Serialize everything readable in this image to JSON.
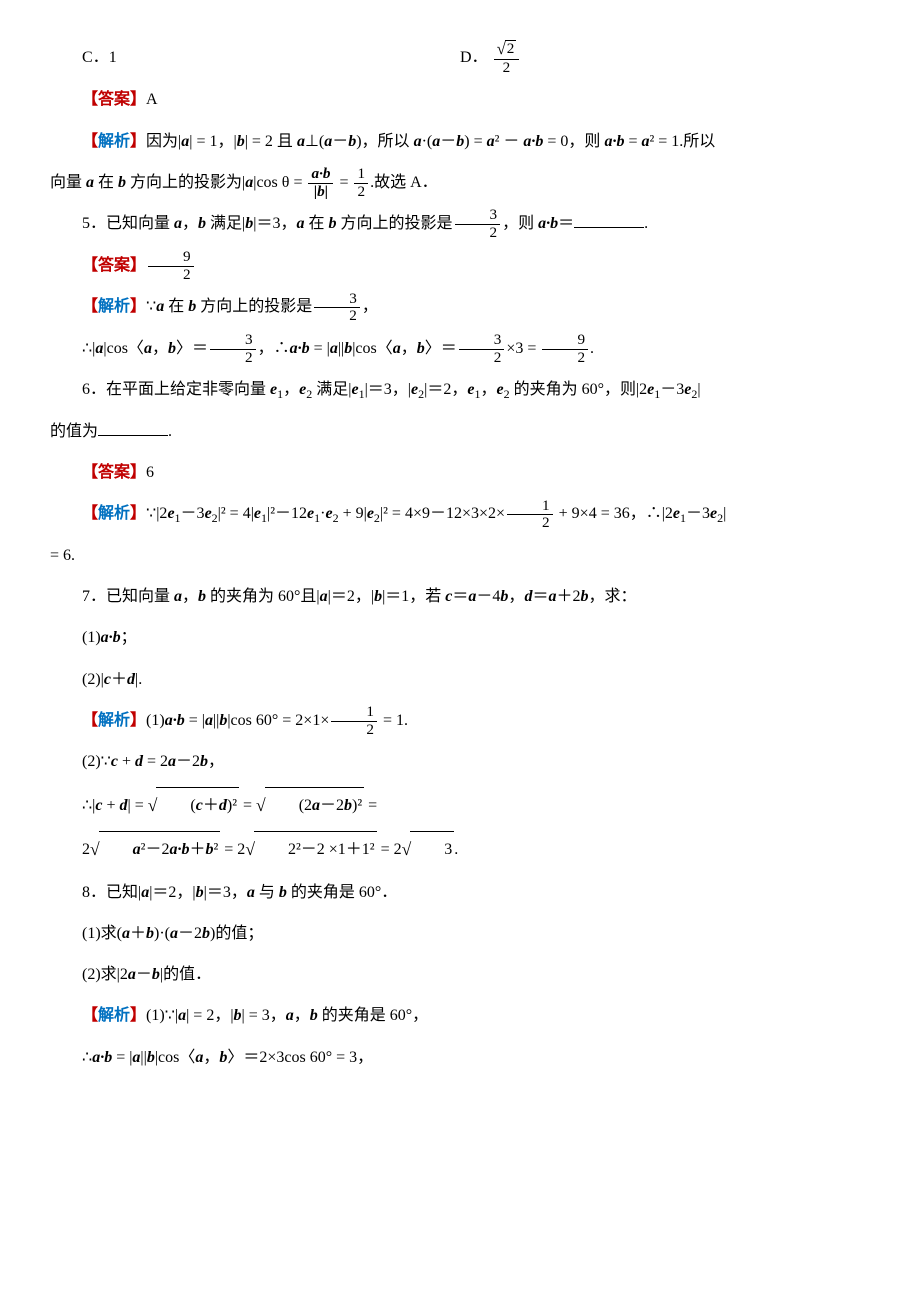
{
  "colors": {
    "answer_red": "#c00000",
    "explain_blue": "#0070c0",
    "text": "#000000",
    "bg": "#ffffff"
  },
  "typography": {
    "body_font": "SimSun",
    "math_font": "Times New Roman",
    "body_size_pt": 12,
    "line_height": 2.2
  },
  "optC": {
    "label": "C．",
    "value": "1"
  },
  "optD": {
    "label": "D．",
    "num": "√2",
    "den": "2"
  },
  "q4": {
    "ans_label": "【答案】",
    "ans": "A",
    "expl_label": "【解析】",
    "expl_1a": "因为|",
    "expl_1b": "| = 1，|",
    "expl_1c": "| = 2 且 ",
    "expl_1d": "⊥(",
    "expl_1e": "－",
    "expl_1f": ")，所以 ",
    "expl_1g": "·(",
    "expl_1h": "－",
    "expl_1i": ") = ",
    "expl_1j": "² － ",
    "expl_1k": " = 0，则 ",
    "expl_1l": " = ",
    "expl_1m": "² = 1.所以",
    "expl_2a": "向量 ",
    "expl_2b": " 在 ",
    "expl_2c": " 方向上的投影为|",
    "expl_2d": "|cos θ = ",
    "expl_frac_top": "a·b",
    "expl_frac_bot": "|b|",
    "expl_2e": " = ",
    "expl_2f": "1",
    "expl_2g": "2",
    "expl_2h": ".故选 A．"
  },
  "q5": {
    "stem_a": "5．已知向量 ",
    "stem_b": "，",
    "stem_c": " 满足|",
    "stem_d": "|＝3，",
    "stem_e": " 在 ",
    "stem_f": " 方向上的投影是",
    "proj_num": "3",
    "proj_den": "2",
    "stem_g": "，则 ",
    "stem_h": "＝",
    "stem_i": ".",
    "ans_label": "【答案】",
    "ans_num": "9",
    "ans_den": "2",
    "expl_label": "【解析】",
    "e1a": "∵",
    "e1b": " 在 ",
    "e1c": " 方向上的投影是",
    "e1_num": "3",
    "e1_den": "2",
    "e1d": "，",
    "e2a": "∴|",
    "e2b": "|cos〈",
    "e2c": "，",
    "e2d": "〉＝",
    "e2_num1": "3",
    "e2_den1": "2",
    "e2e": "，∴",
    "e2f": " = |",
    "e2g": "||",
    "e2h": "|cos〈",
    "e2i": "，",
    "e2j": "〉＝",
    "e2_num2": "3",
    "e2_den2": "2",
    "e2k": "×3 = ",
    "e2_num3": "9",
    "e2_den3": "2",
    "e2l": "."
  },
  "q6": {
    "stem_a": "6．在平面上给定非零向量 ",
    "stem_b": "，",
    "stem_c": " 满足|",
    "stem_d": "|＝3，|",
    "stem_e": "|＝2，",
    "stem_f": "，",
    "stem_g": " 的夹角为 60°，则|2",
    "stem_h": "－3",
    "stem_i": "|",
    "stem2": "的值为",
    "stem_j": ".",
    "ans_label": "【答案】",
    "ans": "6",
    "expl_label": "【解析】",
    "ex_a": "∵|2",
    "ex_b": "－3",
    "ex_c": "|² = 4|",
    "ex_d": "|²－12",
    "ex_e": "·",
    "ex_f": " + 9|",
    "ex_g": "|² = 4×9－12×3×2×",
    "ex_num": "1",
    "ex_den": "2",
    "ex_h": " + 9×4 = 36，∴|2",
    "ex_i": "－3",
    "ex_j": "|",
    "ex2": "= 6."
  },
  "q7": {
    "stem_a": "7．已知向量 ",
    "stem_b": "，",
    "stem_c": " 的夹角为 60°且|",
    "stem_d": "|＝2，|",
    "stem_e": "|＝1，若 ",
    "stem_f": "＝",
    "stem_g": "－4",
    "stem_h": "，",
    "stem_i": "＝",
    "stem_j": "＋2",
    "stem_k": "，求：",
    "p1": "(1)",
    "p1b": "；",
    "p2": "(2)|",
    "p2b": "＋",
    "p2c": "|.",
    "expl_label": "【解析】",
    "s1a": "(1)",
    "s1b": " = |",
    "s1c": "||",
    "s1d": "|cos 60° = 2×1×",
    "s1_num": "1",
    "s1_den": "2",
    "s1e": " = 1.",
    "s2a": "(2)∵",
    "s2b": " + ",
    "s2c": " = 2",
    "s2d": "－2",
    "s2e": "，",
    "s3a": "∴|",
    "s3b": " + ",
    "s3c": "| = ",
    "s3_sq1": "(c＋d)²",
    "s3d": " = ",
    "s3_sq2": "(2a－2b)²",
    "s3e": " =",
    "s4a": "2",
    "s4_sq1": "a²－2a·b＋b²",
    "s4b": " = 2",
    "s4_sq2": "2²－2 ×1＋1²",
    "s4c": " = 2",
    "s4_sq3": "3",
    "s4d": "."
  },
  "q8": {
    "stem_a": "8．已知|",
    "stem_b": "|＝2，|",
    "stem_c": "|＝3，",
    "stem_d": " 与 ",
    "stem_e": " 的夹角是 60°．",
    "p1a": "(1)求(",
    "p1b": "＋",
    "p1c": ")·(",
    "p1d": "－2",
    "p1e": ")的值；",
    "p2a": "(2)求|2",
    "p2b": "－",
    "p2c": "|的值．",
    "expl_label": "【解析】",
    "s1a": "(1)∵|",
    "s1b": "| = 2，|",
    "s1c": "| = 3，",
    "s1d": "，",
    "s1e": " 的夹角是 60°，",
    "s2a": "∴",
    "s2b": " = |",
    "s2c": "||",
    "s2d": "|cos〈",
    "s2e": "，",
    "s2f": "〉＝2×3cos 60° = 3，"
  },
  "vec": {
    "a": "a",
    "b": "b",
    "c": "c",
    "d": "d",
    "e1": "e",
    "e2": "e",
    "ab": "a·b"
  }
}
